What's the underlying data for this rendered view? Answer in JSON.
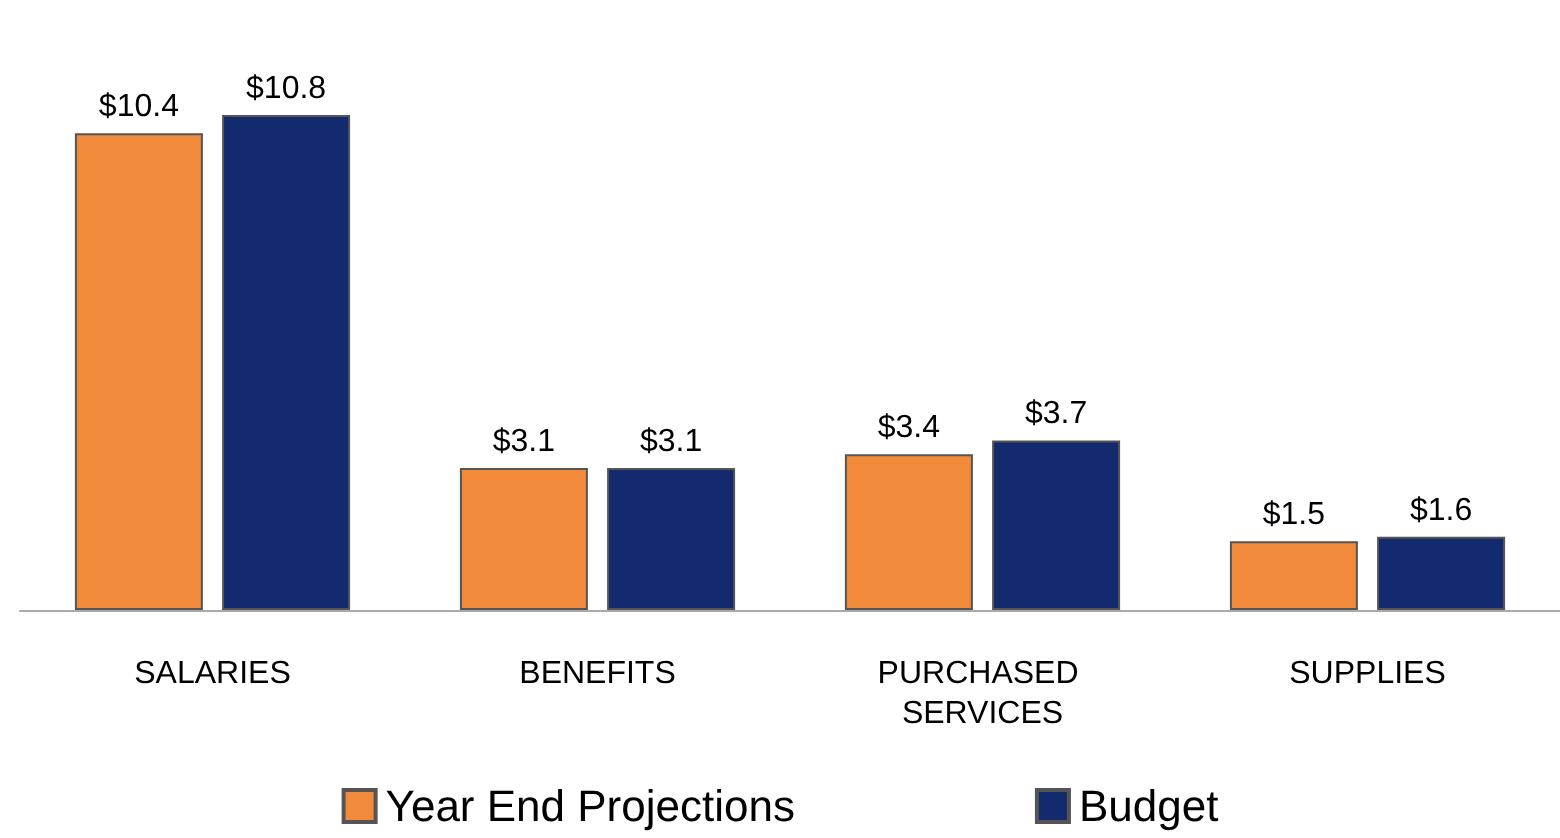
{
  "chart_data": {
    "type": "bar",
    "categories": [
      "SALARIES",
      "BENEFITS",
      "PURCHASED SERVICES",
      "SUPPLIES"
    ],
    "series": [
      {
        "name": "Year End Projections",
        "color": "#f28a3c",
        "values": [
          10.4,
          3.1,
          3.4,
          1.5
        ],
        "value_labels": [
          "$10.4",
          "$3.1",
          "$3.4",
          "$1.5"
        ]
      },
      {
        "name": "Budget",
        "color": "#142a6e",
        "values": [
          10.8,
          3.1,
          3.7,
          1.6
        ],
        "value_labels": [
          "$10.8",
          "$3.1",
          "$3.7",
          "$1.6"
        ]
      }
    ],
    "legend": "bottom"
  }
}
